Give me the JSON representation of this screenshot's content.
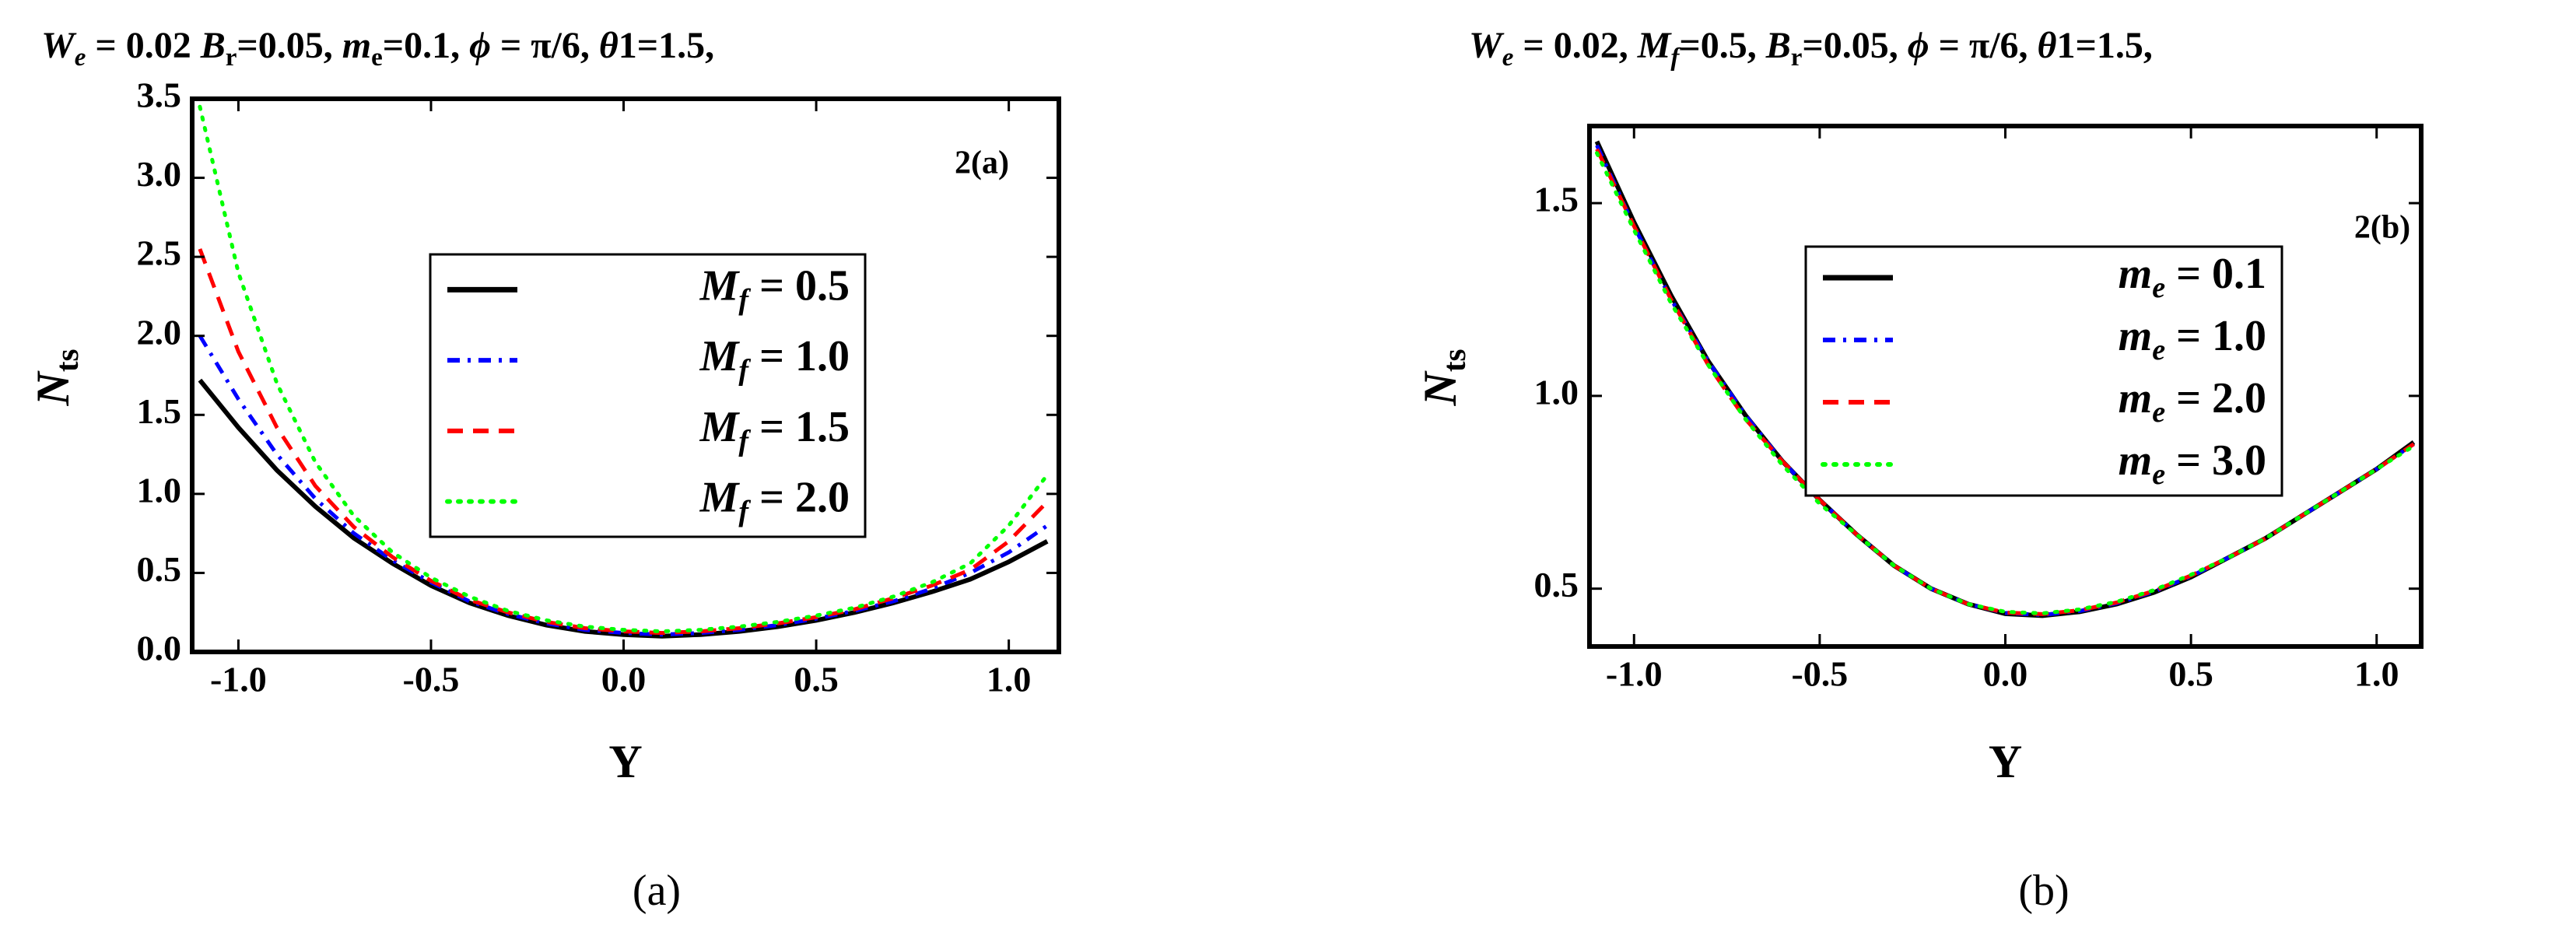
{
  "chart_data": [
    {
      "type": "line",
      "title": [
        {
          "t": "W",
          "it": true
        },
        {
          "t": "e",
          "sub": true,
          "it": true
        },
        {
          "t": " = 0.02 "
        },
        {
          "t": "B",
          "it": true
        },
        {
          "t": "r",
          "sub": true
        },
        {
          "t": "=0.05, "
        },
        {
          "t": "m",
          "it": true
        },
        {
          "t": "e",
          "sub": true
        },
        {
          "t": "=0.1, "
        },
        {
          "t": "ϕ",
          "it": true
        },
        {
          "t": " = π/6, "
        },
        {
          "t": "θ",
          "it": true
        },
        {
          "t": "1=1.5,"
        }
      ],
      "xlabel": "Y",
      "ylabel": [
        {
          "t": "N",
          "it": true
        },
        {
          "t": "ts",
          "sub": true
        }
      ],
      "annotation": "2(a)",
      "caption": "(a)",
      "x": [
        -1.1,
        -1.0,
        -0.9,
        -0.8,
        -0.7,
        -0.6,
        -0.5,
        -0.4,
        -0.3,
        -0.2,
        -0.1,
        0.0,
        0.1,
        0.2,
        0.3,
        0.4,
        0.5,
        0.6,
        0.7,
        0.8,
        0.9,
        1.0,
        1.1
      ],
      "series": [
        {
          "name": [
            {
              "t": "M",
              "it": true
            },
            {
              "t": "f",
              "sub": true,
              "it": true
            },
            {
              "t": " = 0.5"
            }
          ],
          "color": "#000000",
          "dash": "solid",
          "values": [
            1.72,
            1.42,
            1.15,
            0.92,
            0.72,
            0.56,
            0.42,
            0.31,
            0.23,
            0.17,
            0.13,
            0.11,
            0.1,
            0.11,
            0.13,
            0.16,
            0.2,
            0.25,
            0.31,
            0.38,
            0.46,
            0.57,
            0.7
          ]
        },
        {
          "name": [
            {
              "t": "M",
              "it": true
            },
            {
              "t": "f",
              "sub": true,
              "it": true
            },
            {
              "t": " = 1.0"
            }
          ],
          "color": "#0000ff",
          "dash": "dashdot",
          "values": [
            2.0,
            1.6,
            1.25,
            0.97,
            0.75,
            0.58,
            0.44,
            0.32,
            0.24,
            0.18,
            0.14,
            0.12,
            0.11,
            0.12,
            0.14,
            0.17,
            0.21,
            0.26,
            0.32,
            0.4,
            0.5,
            0.63,
            0.8
          ]
        },
        {
          "name": [
            {
              "t": "M",
              "it": true
            },
            {
              "t": "f",
              "sub": true,
              "it": true
            },
            {
              "t": " = 1.5"
            }
          ],
          "color": "#ff0000",
          "dash": "dashed",
          "values": [
            2.55,
            1.9,
            1.42,
            1.05,
            0.79,
            0.6,
            0.45,
            0.33,
            0.25,
            0.19,
            0.15,
            0.13,
            0.12,
            0.13,
            0.15,
            0.18,
            0.22,
            0.27,
            0.34,
            0.42,
            0.52,
            0.7,
            0.95
          ]
        },
        {
          "name": [
            {
              "t": "M",
              "it": true
            },
            {
              "t": "f",
              "sub": true,
              "it": true
            },
            {
              "t": " = 2.0"
            }
          ],
          "color": "#00ff00",
          "dash": "dotted",
          "values": [
            3.45,
            2.4,
            1.7,
            1.2,
            0.86,
            0.63,
            0.47,
            0.35,
            0.26,
            0.2,
            0.16,
            0.14,
            0.13,
            0.14,
            0.16,
            0.19,
            0.23,
            0.28,
            0.35,
            0.44,
            0.56,
            0.8,
            1.12
          ]
        }
      ],
      "xlim": [
        -1.12,
        1.13
      ],
      "ylim": [
        0,
        3.5
      ],
      "xticks": [
        {
          "value": -1,
          "label": "-1.0"
        },
        {
          "value": -0.5,
          "label": "-0.5"
        },
        {
          "value": 0,
          "label": "0.0"
        },
        {
          "value": 0.5,
          "label": "0.5"
        },
        {
          "value": 1,
          "label": "1.0"
        }
      ],
      "yticks": [
        {
          "value": 0,
          "label": "0.0"
        },
        {
          "value": 0.5,
          "label": "0.5"
        },
        {
          "value": 1,
          "label": "1.0"
        },
        {
          "value": 1.5,
          "label": "1.5"
        },
        {
          "value": 2,
          "label": "2.0"
        },
        {
          "value": 2.5,
          "label": "2.5"
        },
        {
          "value": 3,
          "label": "3.0"
        },
        {
          "value": 3.5,
          "label": "3.5"
        }
      ],
      "grid": false
    },
    {
      "type": "line",
      "title": [
        {
          "t": "W",
          "it": true
        },
        {
          "t": "e",
          "sub": true,
          "it": true
        },
        {
          "t": " = 0.02, "
        },
        {
          "t": "M",
          "it": true
        },
        {
          "t": "f",
          "sub": true,
          "it": true
        },
        {
          "t": "=0.5, "
        },
        {
          "t": "B",
          "it": true
        },
        {
          "t": "r",
          "sub": true
        },
        {
          "t": "=0.05, "
        },
        {
          "t": "ϕ",
          "it": true
        },
        {
          "t": " = π/6, "
        },
        {
          "t": "θ",
          "it": true
        },
        {
          "t": "1=1.5,"
        }
      ],
      "xlabel": "Y",
      "ylabel": [
        {
          "t": "N",
          "it": true
        },
        {
          "t": "ts",
          "sub": true
        }
      ],
      "annotation": "2(b)",
      "caption": "(b)",
      "x": [
        -1.1,
        -1.0,
        -0.9,
        -0.8,
        -0.7,
        -0.6,
        -0.5,
        -0.4,
        -0.3,
        -0.2,
        -0.1,
        0.0,
        0.1,
        0.2,
        0.3,
        0.4,
        0.5,
        0.6,
        0.7,
        0.8,
        0.9,
        1.0,
        1.1
      ],
      "series": [
        {
          "name": [
            {
              "t": "m",
              "it": true
            },
            {
              "t": "e",
              "sub": true,
              "it": true
            },
            {
              "t": " = 0.1"
            }
          ],
          "color": "#000000",
          "dash": "solid",
          "values": [
            1.66,
            1.45,
            1.26,
            1.09,
            0.95,
            0.83,
            0.73,
            0.64,
            0.56,
            0.5,
            0.46,
            0.435,
            0.43,
            0.44,
            0.46,
            0.49,
            0.53,
            0.58,
            0.63,
            0.69,
            0.75,
            0.81,
            0.88
          ]
        },
        {
          "name": [
            {
              "t": "m",
              "it": true
            },
            {
              "t": "e",
              "sub": true,
              "it": true
            },
            {
              "t": " = 1.0"
            }
          ],
          "color": "#0000ff",
          "dash": "dashdot",
          "values": [
            1.65,
            1.44,
            1.25,
            1.09,
            0.95,
            0.83,
            0.73,
            0.64,
            0.56,
            0.5,
            0.46,
            0.437,
            0.432,
            0.442,
            0.462,
            0.492,
            0.532,
            0.58,
            0.63,
            0.69,
            0.75,
            0.81,
            0.875
          ]
        },
        {
          "name": [
            {
              "t": "m",
              "it": true
            },
            {
              "t": "e",
              "sub": true,
              "it": true
            },
            {
              "t": " = 2.0"
            }
          ],
          "color": "#ff0000",
          "dash": "dashed",
          "values": [
            1.64,
            1.44,
            1.25,
            1.08,
            0.94,
            0.83,
            0.73,
            0.64,
            0.56,
            0.5,
            0.46,
            0.438,
            0.434,
            0.444,
            0.464,
            0.494,
            0.534,
            0.58,
            0.63,
            0.69,
            0.75,
            0.81,
            0.875
          ]
        },
        {
          "name": [
            {
              "t": "m",
              "it": true
            },
            {
              "t": "e",
              "sub": true,
              "it": true
            },
            {
              "t": " = 3.0"
            }
          ],
          "color": "#00ff00",
          "dash": "dotted",
          "values": [
            1.63,
            1.43,
            1.24,
            1.08,
            0.94,
            0.82,
            0.72,
            0.64,
            0.56,
            0.5,
            0.46,
            0.44,
            0.436,
            0.446,
            0.466,
            0.496,
            0.536,
            0.58,
            0.63,
            0.69,
            0.75,
            0.81,
            0.87
          ]
        }
      ],
      "xlim": [
        -1.12,
        1.12
      ],
      "ylim": [
        0.35,
        1.7
      ],
      "xticks": [
        {
          "value": -1,
          "label": "-1.0"
        },
        {
          "value": -0.5,
          "label": "-0.5"
        },
        {
          "value": 0,
          "label": "0.0"
        },
        {
          "value": 0.5,
          "label": "0.5"
        },
        {
          "value": 1,
          "label": "1.0"
        }
      ],
      "yticks": [
        0.5,
        {
          "value": 1,
          "label": "1.0"
        },
        1.5
      ],
      "grid": false
    }
  ]
}
